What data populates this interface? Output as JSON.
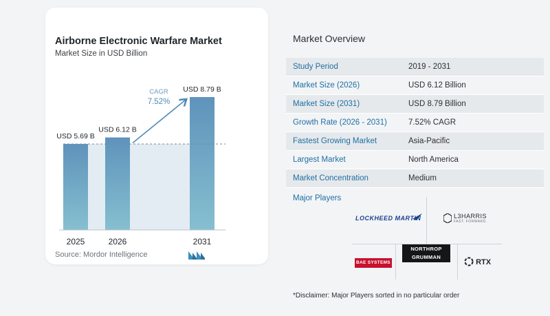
{
  "chart": {
    "title": "Airborne Electronic Warfare Market",
    "subtitle": "Market Size in USD Billion",
    "source": "Source:  Mordor Intelligence"
  },
  "chart_data": {
    "type": "bar",
    "categories": [
      "2025",
      "2026",
      "2031"
    ],
    "values": [
      5.69,
      6.12,
      8.79
    ],
    "data_labels": [
      "USD 5.69 B",
      "USD 6.12 B",
      "USD 8.79 B"
    ],
    "cagr_label": "CAGR",
    "cagr_value": "7.52%",
    "title": "Airborne Electronic Warfare Market",
    "subtitle": "Market Size in USD Billion",
    "grid": false,
    "colors": {
      "bar_top": "#5f93bb",
      "bar_bottom": "#86bfd0",
      "band": "#e3ecf3",
      "arrow": "#4e8bb6"
    }
  },
  "overview": {
    "title": "Market Overview",
    "rows": [
      {
        "label": "Study Period",
        "value": "2019 - 2031"
      },
      {
        "label": "Market Size (2026)",
        "value": "USD 6.12 Billion"
      },
      {
        "label": "Market Size (2031)",
        "value": "USD 8.79 Billion"
      },
      {
        "label": "Growth Rate (2026 - 2031)",
        "value": "7.52% CAGR"
      },
      {
        "label": "Fastest Growing Market",
        "value": "Asia-Pacific"
      },
      {
        "label": "Largest Market",
        "value": "North America"
      },
      {
        "label": "Market Concentration",
        "value": "Medium"
      }
    ]
  },
  "players": {
    "title": "Major Players",
    "logos": {
      "lockheed": "LOCKHEED MARTIN",
      "l3harris": "L3HARRIS",
      "l3harris_tagline": "FAST. FORWARD.",
      "northrop_line1": "NORTHROP",
      "northrop_line2": "GRUMMAN",
      "bae": "BAE SYSTEMS",
      "rtx": "RTX"
    }
  },
  "disclaimer": "*Disclaimer: Major Players sorted in no particular order"
}
